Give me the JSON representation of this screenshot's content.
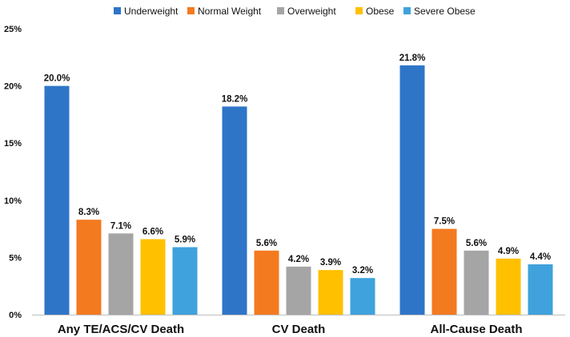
{
  "chart_data": {
    "type": "bar",
    "categories": [
      "Any TE/ACS/CV Death",
      "CV Death",
      "All-Cause Death"
    ],
    "series": [
      {
        "name": "Underweight",
        "color": "#2E75C8",
        "values": [
          20.0,
          18.2,
          21.8
        ]
      },
      {
        "name": "Normal Weight",
        "color": "#F47A20",
        "values": [
          8.3,
          5.6,
          7.5
        ]
      },
      {
        "name": "Overweight",
        "color": "#A5A5A5",
        "values": [
          7.1,
          4.2,
          5.6
        ]
      },
      {
        "name": "Obese",
        "color": "#FFC000",
        "values": [
          6.6,
          3.9,
          4.9
        ]
      },
      {
        "name": "Severe Obese",
        "color": "#3FA2DC",
        "values": [
          5.9,
          3.2,
          4.4
        ]
      }
    ],
    "data_labels": [
      [
        "20.0%",
        "18.2%",
        "21.8%"
      ],
      [
        "8.3%",
        "5.6%",
        "7.5%"
      ],
      [
        "7.1%",
        "4.2%",
        "5.6%"
      ],
      [
        "6.6%",
        "3.9%",
        "4.9%"
      ],
      [
        "5.9%",
        "3.2%",
        "4.4%"
      ]
    ],
    "y_ticks": [
      0,
      5,
      10,
      15,
      20,
      25
    ],
    "y_tick_labels": [
      "0%",
      "5%",
      "10%",
      "15%",
      "20%",
      "25%"
    ],
    "ylim": [
      0,
      25
    ],
    "grid": false,
    "legend_position": "top"
  }
}
